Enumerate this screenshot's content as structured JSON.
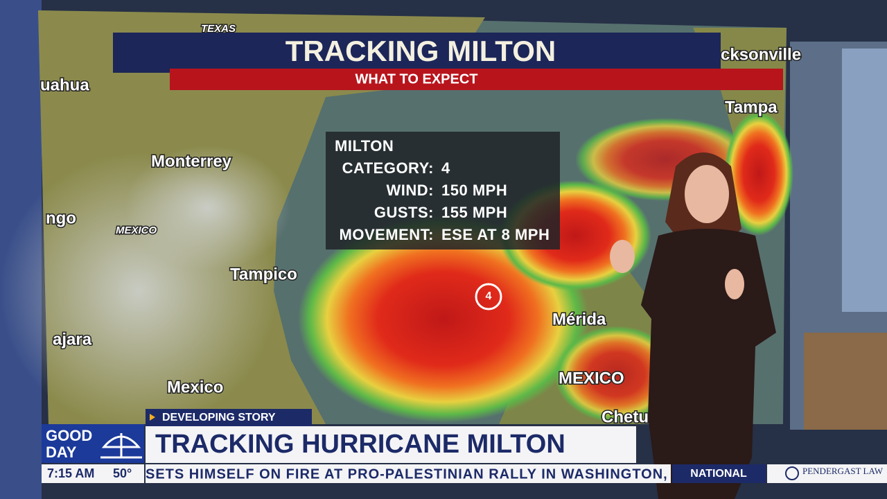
{
  "graphic": {
    "title": "TRACKING MILTON",
    "subtitle": "WHAT TO EXPECT"
  },
  "storm_info": {
    "name": "MILTON",
    "rows": [
      [
        "CATEGORY:",
        "4"
      ],
      [
        "WIND:",
        "150 MPH"
      ],
      [
        "GUSTS:",
        "155 MPH"
      ],
      [
        "MOVEMENT:",
        "ESE AT 8 MPH"
      ]
    ]
  },
  "storm_marker": "4",
  "map_labels": [
    "TEXAS",
    "uahua",
    "Monterrey",
    "ngo",
    "MEXICO",
    "Tampico",
    "ajara",
    "Mexico",
    "Mérida",
    "MEXICO",
    "Chetum",
    "Tampa",
    "cksonville"
  ],
  "lower_third": {
    "tag": "DEVELOPING STORY",
    "headline": "TRACKING HURRICANE MILTON",
    "ticker": "SETS HIMSELF ON FIRE AT PRO-PALESTINIAN RALLY IN WASHINGTON,",
    "ticker_category": "NATIONAL",
    "sponsor": "PENDERGAST LAW"
  },
  "station": {
    "logo": [
      "GOOD",
      "DAY"
    ],
    "time": "7:15 AM",
    "temperature": "50°"
  }
}
